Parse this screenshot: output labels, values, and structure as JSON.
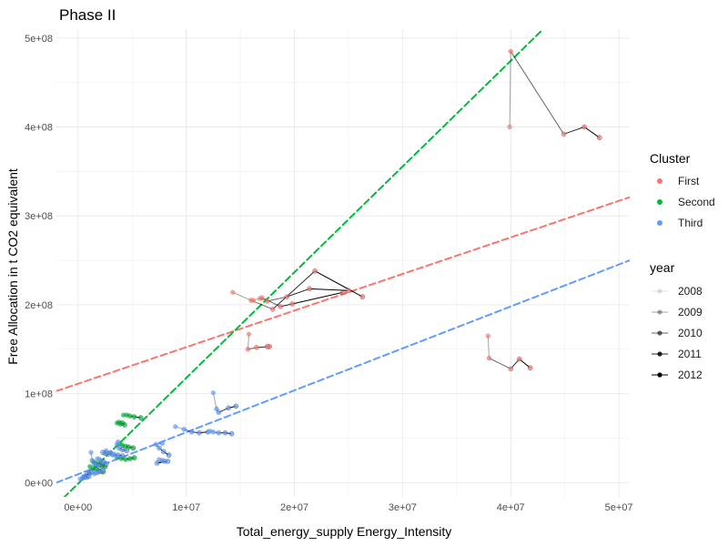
{
  "chart_data": {
    "type": "scatter",
    "title": "Phase II",
    "xlabel": "Total_energy_supply Energy_Intensity",
    "ylabel": "Free Allocation in t CO2 equivalent",
    "xlim": [
      -2000000,
      51000000
    ],
    "ylim": [
      -16000000,
      510000000
    ],
    "x_ticks": [
      0,
      10000000,
      20000000,
      30000000,
      40000000,
      50000000
    ],
    "x_tick_labels": [
      "0e+00",
      "1e+07",
      "2e+07",
      "3e+07",
      "4e+07",
      "5e+07"
    ],
    "y_ticks": [
      0,
      100000000,
      200000000,
      300000000,
      400000000,
      500000000
    ],
    "y_tick_labels": [
      "0e+00",
      "1e+08",
      "2e+08",
      "3e+08",
      "4e+08",
      "5e+08"
    ],
    "grid": true,
    "legend_position": "right",
    "legend": {
      "cluster_title": "Cluster",
      "clusters": [
        {
          "label": "First",
          "color": "#F8766D"
        },
        {
          "label": "Second",
          "color": "#00BA38"
        },
        {
          "label": "Third",
          "color": "#619CFF"
        }
      ],
      "year_title": "year",
      "years": [
        "2008",
        "2009",
        "2010",
        "2011",
        "2012"
      ]
    },
    "regression_lines": [
      {
        "cluster": "First",
        "x": [
          -2000000,
          51000000
        ],
        "y": [
          103000000,
          321000000
        ]
      },
      {
        "cluster": "Second",
        "x": [
          -2000000,
          43000000
        ],
        "y": [
          -25000000,
          510000000
        ]
      },
      {
        "cluster": "Third",
        "x": [
          -2000000,
          51000000
        ],
        "y": [
          0,
          250000000
        ]
      }
    ],
    "series": [
      {
        "cluster": "First",
        "points": [
          [
            39900000,
            400000000
          ],
          [
            40000000,
            485000000
          ],
          [
            44900000,
            392000000
          ],
          [
            46800000,
            400000000
          ],
          [
            48200000,
            388000000
          ]
        ]
      },
      {
        "cluster": "First",
        "points": [
          [
            14300000,
            214000000
          ],
          [
            16000000,
            205000000
          ],
          [
            18000000,
            195000000
          ],
          [
            21900000,
            238000000
          ],
          [
            26300000,
            209000000
          ]
        ]
      },
      {
        "cluster": "First",
        "points": [
          [
            16200000,
            205000000
          ],
          [
            17000000,
            208000000
          ],
          [
            18700000,
            198000000
          ],
          [
            19800000,
            201000000
          ],
          [
            24500000,
            214000000
          ]
        ]
      },
      {
        "cluster": "First",
        "points": [
          [
            16800000,
            207000000
          ],
          [
            17500000,
            204000000
          ],
          [
            19300000,
            209000000
          ],
          [
            21400000,
            218000000
          ],
          [
            25000000,
            216000000
          ]
        ]
      },
      {
        "cluster": "First",
        "points": [
          [
            15800000,
            167000000
          ],
          [
            15700000,
            150000000
          ],
          [
            16500000,
            152000000
          ],
          [
            17700000,
            153000000
          ],
          [
            17500000,
            153000000
          ]
        ]
      },
      {
        "cluster": "First",
        "points": [
          [
            37900000,
            165000000
          ],
          [
            38000000,
            140000000
          ],
          [
            40000000,
            128000000
          ],
          [
            40800000,
            139000000
          ],
          [
            41800000,
            129000000
          ]
        ]
      },
      {
        "cluster": "Second",
        "points": [
          [
            4200000,
            76000000
          ],
          [
            4500000,
            76000000
          ],
          [
            4800000,
            75000000
          ],
          [
            5200000,
            74000000
          ],
          [
            5800000,
            73000000
          ]
        ]
      },
      {
        "cluster": "Second",
        "points": [
          [
            3600000,
            67000000
          ],
          [
            3800000,
            68000000
          ],
          [
            3900000,
            66000000
          ],
          [
            4100000,
            67000000
          ],
          [
            4300000,
            65000000
          ]
        ]
      },
      {
        "cluster": "Second",
        "points": [
          [
            3900000,
            44000000
          ],
          [
            4100000,
            42000000
          ],
          [
            4400000,
            41000000
          ],
          [
            4700000,
            40000000
          ],
          [
            5100000,
            39000000
          ]
        ]
      },
      {
        "cluster": "Second",
        "points": [
          [
            3600000,
            28000000
          ],
          [
            4000000,
            27000000
          ],
          [
            4400000,
            26000000
          ],
          [
            4800000,
            27000000
          ],
          [
            5200000,
            28000000
          ]
        ]
      },
      {
        "cluster": "Second",
        "points": [
          [
            1100000,
            18000000
          ],
          [
            1400000,
            16000000
          ],
          [
            1700000,
            15000000
          ],
          [
            2000000,
            13000000
          ],
          [
            2300000,
            12000000
          ]
        ]
      },
      {
        "cluster": "Second",
        "points": [
          [
            1400000,
            24000000
          ],
          [
            1700000,
            22000000
          ],
          [
            2000000,
            20000000
          ],
          [
            2200000,
            19000000
          ],
          [
            2500000,
            18000000
          ]
        ]
      },
      {
        "cluster": "Third",
        "points": [
          [
            12500000,
            101000000
          ],
          [
            12800000,
            83000000
          ],
          [
            13000000,
            79000000
          ],
          [
            13900000,
            84000000
          ],
          [
            14600000,
            86000000
          ]
        ]
      },
      {
        "cluster": "Third",
        "points": [
          [
            9000000,
            63000000
          ],
          [
            9800000,
            60000000
          ],
          [
            10500000,
            57000000
          ],
          [
            11200000,
            56000000
          ],
          [
            12000000,
            57000000
          ]
        ]
      },
      {
        "cluster": "Third",
        "points": [
          [
            12200000,
            58000000
          ],
          [
            12500000,
            57000000
          ],
          [
            13000000,
            56000000
          ],
          [
            13600000,
            56000000
          ],
          [
            14200000,
            55000000
          ]
        ]
      },
      {
        "cluster": "Third",
        "points": [
          [
            7800000,
            44000000
          ],
          [
            7200000,
            43000000
          ],
          [
            7500000,
            39000000
          ],
          [
            7900000,
            35000000
          ],
          [
            8400000,
            31000000
          ]
        ]
      },
      {
        "cluster": "Third",
        "points": [
          [
            7500000,
            26000000
          ],
          [
            7800000,
            25000000
          ],
          [
            8000000,
            24000000
          ],
          [
            7300000,
            22000000
          ],
          [
            8300000,
            24000000
          ]
        ]
      },
      {
        "cluster": "Third",
        "points": [
          [
            1200000,
            34000000
          ],
          [
            1300000,
            25000000
          ],
          [
            1500000,
            21000000
          ],
          [
            1700000,
            20000000
          ],
          [
            1900000,
            19000000
          ]
        ]
      },
      {
        "cluster": "Third",
        "points": [
          [
            2600000,
            36000000
          ],
          [
            3000000,
            34000000
          ],
          [
            3300000,
            32000000
          ],
          [
            3700000,
            31000000
          ],
          [
            4100000,
            30000000
          ]
        ]
      },
      {
        "cluster": "Third",
        "points": [
          [
            3700000,
            46000000
          ],
          [
            3600000,
            43000000
          ],
          [
            3800000,
            39000000
          ],
          [
            4100000,
            37000000
          ],
          [
            4500000,
            36000000
          ]
        ]
      },
      {
        "cluster": "Third",
        "points": [
          [
            500000,
            7000000
          ],
          [
            700000,
            8000000
          ],
          [
            900000,
            10000000
          ],
          [
            1100000,
            11000000
          ],
          [
            1300000,
            12000000
          ]
        ]
      },
      {
        "cluster": "Third",
        "points": [
          [
            200000,
            4000000
          ],
          [
            400000,
            5000000
          ],
          [
            600000,
            6000000
          ],
          [
            800000,
            6000000
          ],
          [
            1000000,
            7000000
          ]
        ]
      },
      {
        "cluster": "Third",
        "points": [
          [
            1500000,
            10000000
          ],
          [
            1700000,
            11000000
          ],
          [
            1900000,
            12000000
          ],
          [
            2100000,
            13000000
          ],
          [
            2300000,
            14000000
          ]
        ]
      },
      {
        "cluster": "Third",
        "points": [
          [
            1800000,
            27000000
          ],
          [
            2000000,
            26000000
          ],
          [
            2200000,
            24000000
          ],
          [
            2400000,
            23000000
          ],
          [
            2600000,
            21000000
          ]
        ]
      },
      {
        "cluster": "Third",
        "points": [
          [
            3600000,
            30000000
          ],
          [
            3200000,
            31000000
          ],
          [
            2800000,
            32000000
          ],
          [
            2500000,
            33000000
          ],
          [
            2300000,
            34000000
          ]
        ]
      }
    ]
  }
}
